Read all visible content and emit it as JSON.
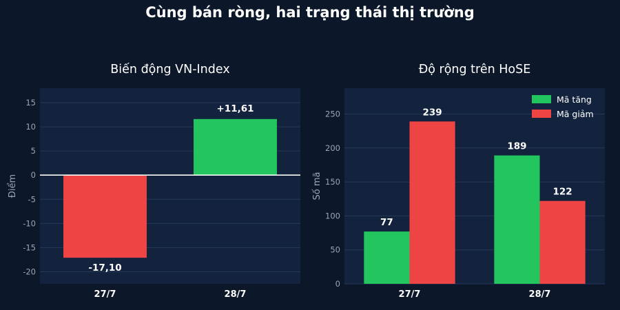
{
  "page": {
    "title": "Cùng bán ròng, hai trạng thái thị trường"
  },
  "colors": {
    "background": "#0c1829",
    "plot_bg": "#13223d",
    "grid": "#25395a",
    "positive": "#22c55e",
    "negative": "#ef4444"
  },
  "chart_data": [
    {
      "type": "bar",
      "title": "Biến động VN-Index",
      "ylabel": "Điểm",
      "xlabel": "",
      "categories": [
        "27/7",
        "28/7"
      ],
      "values": [
        -17.1,
        11.61
      ],
      "data_labels": [
        "-17,10",
        "+11,61"
      ],
      "ylim": [
        -22.5,
        18
      ],
      "yticks": [
        -20,
        -15,
        -10,
        -5,
        0,
        5,
        10,
        15
      ],
      "ytick_labels": [
        "-20",
        "-15",
        "-10",
        "-5",
        "0",
        "5",
        "10",
        "15"
      ],
      "grid": true,
      "zero_line": true
    },
    {
      "type": "bar",
      "title": "Độ rộng trên HoSE",
      "ylabel": "Số mã",
      "xlabel": "",
      "categories": [
        "27/7",
        "28/7"
      ],
      "series": [
        {
          "name": "Mã tăng",
          "values": [
            77,
            189
          ],
          "labels": [
            "77",
            "189"
          ]
        },
        {
          "name": "Mã giảm",
          "values": [
            239,
            122
          ],
          "labels": [
            "239",
            "122"
          ]
        }
      ],
      "ylim": [
        0,
        288
      ],
      "yticks": [
        0,
        50,
        100,
        150,
        200,
        250
      ],
      "ytick_labels": [
        "0",
        "50",
        "100",
        "150",
        "200",
        "250"
      ],
      "grid": true,
      "legend": "top-right"
    }
  ]
}
